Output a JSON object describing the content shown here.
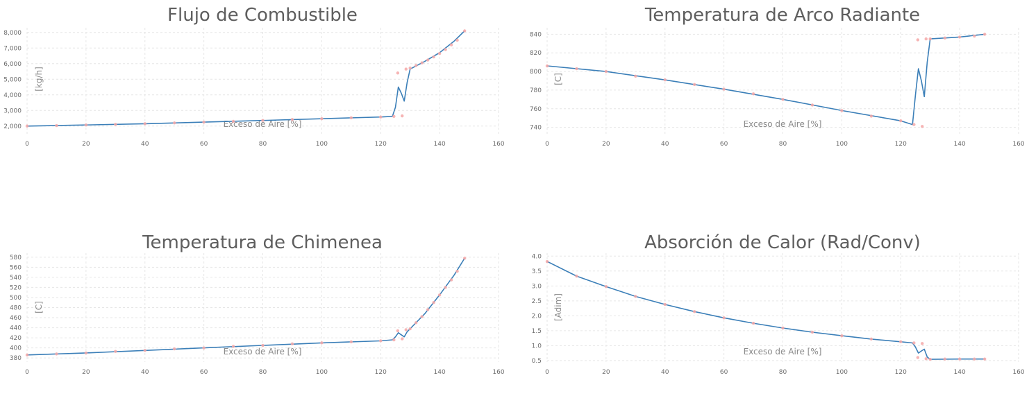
{
  "colors": {
    "line": "#3b7fb8",
    "points": "#f4a7a7",
    "grid": "#e6e6e6",
    "title": "#5e5e5e",
    "tick": "#6b6b6b",
    "label": "#8a8a8a"
  },
  "chart_data": [
    {
      "type": "line",
      "title": "Flujo de Combustible",
      "xlabel": "Exceso de Aire [%]",
      "ylabel": "[kg/h]",
      "xlim": [
        0,
        160
      ],
      "ylim": [
        1500,
        8300
      ],
      "xticks": [
        0,
        20,
        40,
        60,
        80,
        100,
        120,
        140,
        160
      ],
      "yticks": [
        2000,
        3000,
        4000,
        5000,
        6000,
        7000,
        8000
      ],
      "ytick_labels": [
        "2,000",
        "3,000",
        "4,000",
        "5,000",
        "6,000",
        "7,000",
        "8,000"
      ],
      "grid": true,
      "series": [
        {
          "kind": "line",
          "x": [
            0,
            20,
            40,
            60,
            80,
            100,
            120,
            124,
            125,
            126,
            127,
            128,
            129,
            130,
            135,
            140,
            145,
            148.5
          ],
          "y": [
            2000,
            2070,
            2150,
            2250,
            2360,
            2470,
            2580,
            2620,
            3200,
            4500,
            4100,
            3600,
            4800,
            5650,
            6150,
            6700,
            7450,
            8100
          ]
        },
        {
          "kind": "scatter",
          "x": [
            0,
            10,
            20,
            30,
            40,
            50,
            60,
            70,
            80,
            90,
            100,
            110,
            120,
            124.5,
            125.8,
            127.3,
            128.6,
            130,
            132,
            134,
            136,
            138,
            140,
            142,
            144,
            146,
            148.5
          ],
          "y": [
            2000,
            2030,
            2070,
            2110,
            2150,
            2200,
            2250,
            2300,
            2360,
            2420,
            2470,
            2530,
            2580,
            2620,
            5400,
            2650,
            5650,
            5720,
            5880,
            6050,
            6230,
            6430,
            6650,
            6900,
            7200,
            7500,
            8100
          ]
        }
      ]
    },
    {
      "type": "line",
      "title": "Temperatura de Arco Radiante",
      "xlabel": "Exceso de Aire [%]",
      "ylabel": "[C]",
      "xlim": [
        0,
        160
      ],
      "ylim": [
        733,
        847
      ],
      "xticks": [
        0,
        20,
        40,
        60,
        80,
        100,
        120,
        140,
        160
      ],
      "yticks": [
        740,
        760,
        780,
        800,
        820,
        840
      ],
      "ytick_labels": [
        "740",
        "760",
        "780",
        "800",
        "820",
        "840"
      ],
      "grid": true,
      "series": [
        {
          "kind": "line",
          "x": [
            0,
            20,
            40,
            60,
            80,
            100,
            120,
            124,
            125,
            126,
            127,
            128,
            129,
            130,
            140,
            148.5
          ],
          "y": [
            806,
            800,
            791,
            781,
            770,
            758,
            747,
            743,
            775,
            803,
            790,
            773,
            810,
            835,
            837,
            840
          ]
        },
        {
          "kind": "scatter",
          "x": [
            0,
            10,
            20,
            30,
            40,
            50,
            60,
            70,
            80,
            90,
            100,
            110,
            120,
            124.5,
            125.8,
            127.3,
            128.6,
            130,
            135,
            140,
            145,
            148.5
          ],
          "y": [
            806,
            803,
            800,
            795,
            791,
            786,
            781,
            776,
            770,
            764,
            758,
            752,
            747,
            743,
            834,
            741,
            835,
            835,
            836,
            837,
            838,
            840
          ]
        }
      ]
    },
    {
      "type": "line",
      "title": "Temperatura de Chimenea",
      "xlabel": "Exceso de Aire [%]",
      "ylabel": "[C]",
      "xlim": [
        0,
        160
      ],
      "ylim": [
        372,
        588
      ],
      "xticks": [
        0,
        20,
        40,
        60,
        80,
        100,
        120,
        140,
        160
      ],
      "yticks": [
        380,
        400,
        420,
        440,
        460,
        480,
        500,
        520,
        540,
        560,
        580
      ],
      "ytick_labels": [
        "380",
        "400",
        "420",
        "440",
        "460",
        "480",
        "500",
        "520",
        "540",
        "560",
        "580"
      ],
      "grid": true,
      "series": [
        {
          "kind": "line",
          "x": [
            0,
            20,
            40,
            60,
            80,
            100,
            120,
            124,
            125,
            126,
            127,
            128,
            129,
            130,
            135,
            140,
            145,
            148.5
          ],
          "y": [
            386,
            390,
            395,
            400,
            405,
            410,
            414,
            416,
            422,
            430,
            426,
            422,
            432,
            438,
            468,
            505,
            545,
            578
          ]
        },
        {
          "kind": "scatter",
          "x": [
            0,
            10,
            20,
            30,
            40,
            50,
            60,
            70,
            80,
            90,
            100,
            110,
            120,
            124.5,
            125.8,
            127.3,
            128.6,
            130,
            132,
            134,
            136,
            138,
            140,
            142,
            144,
            146,
            148.5
          ],
          "y": [
            386,
            388,
            390,
            393,
            395,
            398,
            400,
            403,
            405,
            408,
            410,
            412,
            414,
            416,
            434,
            418,
            436,
            438,
            450,
            462,
            476,
            490,
            505,
            520,
            535,
            552,
            578
          ]
        }
      ]
    },
    {
      "type": "line",
      "title": "Absorción de Calor (Rad/Conv)",
      "xlabel": "Exceso de Aire [%]",
      "ylabel": "[Adim]",
      "xlim": [
        0,
        160
      ],
      "ylim": [
        0.45,
        4.1
      ],
      "xticks": [
        0,
        20,
        40,
        60,
        80,
        100,
        120,
        140,
        160
      ],
      "yticks": [
        0.5,
        1.0,
        1.5,
        2.0,
        2.5,
        3.0,
        3.5,
        4.0
      ],
      "ytick_labels": [
        "0.5",
        "1.0",
        "1.5",
        "2.0",
        "2.5",
        "3.0",
        "3.5",
        "4.0"
      ],
      "grid": true,
      "series": [
        {
          "kind": "line",
          "x": [
            0,
            10,
            20,
            30,
            40,
            50,
            60,
            70,
            80,
            90,
            100,
            110,
            120,
            124,
            125,
            126,
            127,
            128,
            129,
            130,
            140,
            148.5
          ],
          "y": [
            3.82,
            3.33,
            2.98,
            2.65,
            2.38,
            2.14,
            1.93,
            1.75,
            1.59,
            1.45,
            1.33,
            1.22,
            1.13,
            1.09,
            0.95,
            0.75,
            0.82,
            0.88,
            0.62,
            0.54,
            0.55,
            0.55
          ]
        },
        {
          "kind": "scatter",
          "x": [
            0,
            10,
            20,
            30,
            40,
            50,
            60,
            70,
            80,
            90,
            100,
            110,
            120,
            124.5,
            125.8,
            127.3,
            128.6,
            130,
            135,
            140,
            145,
            148.5
          ],
          "y": [
            3.82,
            3.33,
            2.98,
            2.65,
            2.38,
            2.14,
            1.93,
            1.75,
            1.59,
            1.45,
            1.33,
            1.22,
            1.13,
            1.09,
            0.6,
            1.07,
            0.56,
            0.54,
            0.55,
            0.55,
            0.55,
            0.55
          ]
        }
      ]
    }
  ]
}
